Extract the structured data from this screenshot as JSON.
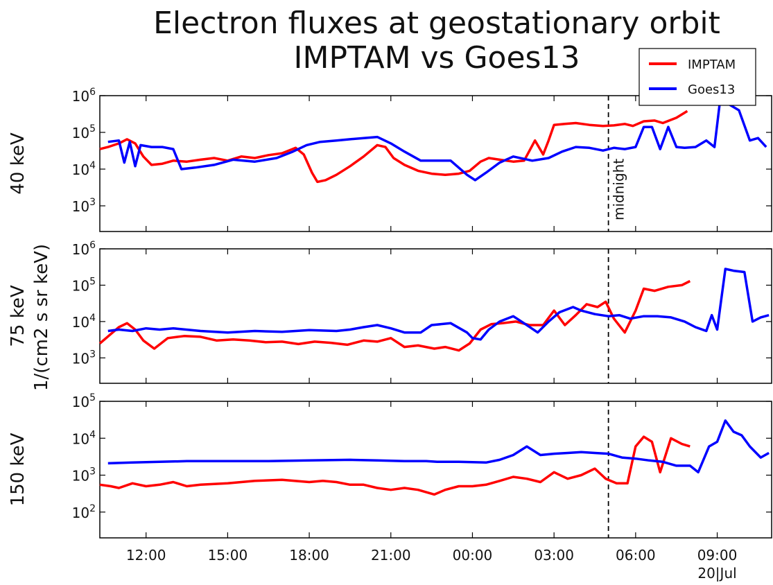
{
  "title_line1": "Electron fluxes at geostationary orbit",
  "title_line2": "IMPTAM vs Goes13",
  "shared_ylabel": "1/(cm2 s sr keV)",
  "annotation": "midnight",
  "x_date_label": "20|Jul",
  "colors": {
    "IMPTAM": "#ff0000",
    "Goes13": "#0000ff",
    "axis": "#000000",
    "marker": "#000000"
  },
  "chart_data": {
    "type": "line",
    "x_unit": "hours",
    "x_ticks": [
      "12:00",
      "15:00",
      "18:00",
      "21:00",
      "00:00",
      "03:00",
      "06:00",
      "09:00"
    ],
    "x_tick_values": [
      12,
      15,
      18,
      21,
      24,
      27,
      30,
      33
    ],
    "xlim": [
      10.3,
      35.0
    ],
    "midnight_x": 29.0,
    "legend": {
      "placement": "top-right",
      "entries": [
        "IMPTAM",
        "Goes13"
      ]
    },
    "panels": [
      {
        "ylabel": "40 keV",
        "log_scale": true,
        "ylim": [
          200,
          1000000
        ],
        "yticks_exp": [
          3,
          4,
          5,
          6
        ],
        "series": [
          {
            "name": "IMPTAM",
            "x": [
              10.3,
              10.6,
              11.0,
              11.3,
              11.6,
              11.9,
              12.2,
              12.6,
              13.0,
              13.5,
              14.0,
              14.5,
              15.0,
              15.5,
              16.0,
              16.5,
              17.0,
              17.5,
              17.8,
              18.1,
              18.3,
              18.6,
              19.0,
              19.5,
              20.0,
              20.5,
              20.8,
              21.1,
              21.5,
              22.0,
              22.5,
              23.0,
              23.5,
              23.9,
              24.3,
              24.6,
              25.0,
              25.5,
              25.9,
              26.3,
              26.6,
              26.8,
              27.0,
              27.4,
              27.8,
              28.3,
              28.8,
              29.2,
              29.6,
              29.9,
              30.3,
              30.7,
              31.0,
              31.5,
              31.9
            ],
            "y": [
              35000,
              40000,
              50000,
              65000,
              50000,
              22000,
              13000,
              14000,
              17000,
              16000,
              18000,
              20000,
              17000,
              22000,
              20000,
              24000,
              27000,
              38000,
              25000,
              8000,
              4500,
              5000,
              7000,
              12000,
              22000,
              45000,
              40000,
              20000,
              13000,
              9000,
              7500,
              7000,
              7500,
              9000,
              16000,
              20000,
              18000,
              16000,
              17000,
              60000,
              25000,
              60000,
              160000,
              170000,
              180000,
              160000,
              150000,
              155000,
              170000,
              150000,
              200000,
              210000,
              180000,
              250000,
              380000
            ]
          },
          {
            "name": "Goes13",
            "x": [
              10.6,
              11.0,
              11.2,
              11.4,
              11.6,
              11.8,
              12.2,
              12.6,
              13.0,
              13.3,
              13.8,
              14.5,
              15.2,
              16.0,
              16.8,
              17.4,
              17.9,
              18.4,
              19.0,
              19.5,
              20.0,
              20.5,
              21.0,
              21.5,
              22.1,
              22.5,
              23.2,
              23.8,
              24.1,
              24.5,
              25.0,
              25.5,
              26.2,
              26.8,
              27.3,
              27.8,
              28.3,
              28.8,
              29.2,
              29.6,
              30.0,
              30.3,
              30.6,
              30.9,
              31.2,
              31.5,
              31.8,
              32.2,
              32.6,
              32.9,
              33.1,
              33.4,
              33.8,
              34.2,
              34.5,
              34.8
            ],
            "y": [
              55000,
              60000,
              15000,
              55000,
              12000,
              45000,
              40000,
              40000,
              35000,
              10000,
              11000,
              13000,
              18000,
              16000,
              20000,
              30000,
              45000,
              55000,
              60000,
              65000,
              70000,
              75000,
              50000,
              30000,
              17000,
              17000,
              17000,
              7000,
              5000,
              8000,
              15000,
              22000,
              17000,
              20000,
              30000,
              40000,
              38000,
              32000,
              38000,
              35000,
              40000,
              140000,
              140000,
              35000,
              140000,
              40000,
              38000,
              40000,
              60000,
              40000,
              700000,
              600000,
              400000,
              60000,
              70000,
              40000
            ]
          }
        ]
      },
      {
        "ylabel": "75 keV",
        "log_scale": true,
        "ylim": [
          200,
          1000000
        ],
        "yticks_exp": [
          3,
          4,
          5,
          6
        ],
        "series": [
          {
            "name": "IMPTAM",
            "x": [
              10.3,
              10.7,
              11.0,
              11.3,
              11.6,
              11.9,
              12.3,
              12.8,
              13.4,
              14.0,
              14.6,
              15.2,
              15.8,
              16.4,
              17.0,
              17.6,
              18.2,
              18.8,
              19.4,
              20.0,
              20.5,
              21.0,
              21.5,
              22.0,
              22.6,
              23.0,
              23.5,
              23.9,
              24.3,
              24.7,
              25.1,
              25.6,
              26.1,
              26.6,
              27.0,
              27.4,
              27.8,
              28.2,
              28.6,
              28.9,
              29.2,
              29.6,
              30.0,
              30.3,
              30.7,
              31.2,
              31.7,
              32.0
            ],
            "y": [
              2500,
              4500,
              7000,
              9000,
              6000,
              3000,
              1800,
              3500,
              4000,
              3800,
              3000,
              3200,
              3000,
              2700,
              2800,
              2400,
              2800,
              2600,
              2300,
              3000,
              2800,
              3500,
              2000,
              2200,
              1800,
              2000,
              1600,
              2500,
              6000,
              8500,
              9000,
              10000,
              8000,
              8000,
              20000,
              8000,
              15000,
              30000,
              25000,
              35000,
              12000,
              5000,
              20000,
              80000,
              70000,
              90000,
              100000,
              130000
            ]
          },
          {
            "name": "Goes13",
            "x": [
              10.6,
              11.0,
              11.5,
              12.0,
              12.5,
              13.0,
              14.0,
              15.0,
              16.0,
              17.0,
              18.0,
              19.0,
              19.5,
              20.0,
              20.5,
              21.0,
              21.5,
              22.1,
              22.5,
              23.2,
              23.8,
              24.0,
              24.3,
              24.6,
              25.0,
              25.5,
              26.0,
              26.4,
              26.8,
              27.2,
              27.7,
              28.0,
              28.5,
              29.0,
              29.4,
              29.8,
              30.3,
              30.8,
              31.3,
              31.8,
              32.2,
              32.6,
              32.8,
              33.0,
              33.3,
              33.6,
              34.0,
              34.3,
              34.6,
              34.9
            ],
            "y": [
              5500,
              6000,
              5500,
              6500,
              6000,
              6500,
              5500,
              5000,
              5500,
              5200,
              5800,
              5500,
              6000,
              7000,
              8000,
              6500,
              5000,
              5000,
              8000,
              9000,
              5000,
              3500,
              3200,
              6000,
              10000,
              14000,
              8000,
              5000,
              10000,
              18000,
              25000,
              20000,
              16000,
              14000,
              15000,
              12000,
              14000,
              14000,
              13000,
              10000,
              7000,
              5500,
              15000,
              6000,
              280000,
              250000,
              230000,
              10000,
              13000,
              15000
            ]
          }
        ]
      },
      {
        "ylabel": "150 keV",
        "log_scale": true,
        "ylim": [
          20,
          100000
        ],
        "yticks_exp": [
          2,
          3,
          4,
          5
        ],
        "series": [
          {
            "name": "IMPTAM",
            "x": [
              10.3,
              10.7,
              11.0,
              11.5,
              12.0,
              12.5,
              13.0,
              13.5,
              14.0,
              15.0,
              16.0,
              17.0,
              18.0,
              18.5,
              19.0,
              19.5,
              20.0,
              20.5,
              21.0,
              21.5,
              22.0,
              22.6,
              23.0,
              23.5,
              24.0,
              24.5,
              25.0,
              25.5,
              26.0,
              26.5,
              27.0,
              27.5,
              28.0,
              28.5,
              28.9,
              29.3,
              29.7,
              30.0,
              30.3,
              30.6,
              30.9,
              31.3,
              31.7,
              32.0
            ],
            "y": [
              550,
              500,
              450,
              600,
              500,
              550,
              650,
              500,
              550,
              600,
              700,
              750,
              650,
              700,
              650,
              550,
              550,
              450,
              400,
              450,
              400,
              300,
              400,
              500,
              500,
              550,
              700,
              900,
              800,
              650,
              1200,
              800,
              1000,
              1500,
              800,
              600,
              600,
              6000,
              11000,
              8000,
              1200,
              10000,
              7000,
              6000
            ]
          },
          {
            "name": "Goes13",
            "x": [
              10.6,
              11.5,
              12.5,
              13.5,
              15.0,
              16.5,
              18.0,
              19.5,
              20.5,
              21.5,
              22.3,
              22.7,
              23.5,
              24.5,
              25.0,
              25.5,
              26.0,
              26.5,
              27.0,
              27.5,
              28.0,
              28.5,
              29.0,
              29.5,
              30.0,
              30.5,
              31.0,
              31.5,
              32.0,
              32.3,
              32.7,
              33.0,
              33.3,
              33.6,
              33.9,
              34.2,
              34.6,
              34.9
            ],
            "y": [
              2100,
              2200,
              2300,
              2400,
              2400,
              2400,
              2500,
              2600,
              2500,
              2400,
              2400,
              2300,
              2300,
              2200,
              2600,
              3500,
              6000,
              3500,
              3800,
              4000,
              4200,
              4000,
              3800,
              3000,
              2800,
              2500,
              2300,
              1800,
              1800,
              1200,
              6000,
              8000,
              30000,
              15000,
              12000,
              6000,
              3000,
              4000
            ]
          }
        ]
      }
    ]
  }
}
